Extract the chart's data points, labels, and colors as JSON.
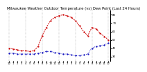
{
  "title": "Milwaukee Weather Outdoor Temperature (vs) Dew Point (Last 24 Hours)",
  "background_color": "#ffffff",
  "grid_color": "#888888",
  "temp_color": "#cc0000",
  "dew_color": "#0000bb",
  "ylim": [
    25,
    85
  ],
  "ytick_vals": [
    30,
    40,
    50,
    60,
    70,
    80
  ],
  "ytick_labels": [
    "3d",
    "4d",
    "5d",
    "6d",
    "7d",
    "8d"
  ],
  "temp_values": [
    40,
    39,
    38,
    37,
    37,
    36,
    37,
    42,
    55,
    65,
    73,
    77,
    79,
    80,
    79,
    77,
    73,
    67,
    60,
    55,
    65,
    63,
    58,
    54,
    50
  ],
  "dew_values": [
    34,
    34,
    33,
    33,
    33,
    33,
    33,
    34,
    35,
    36,
    36,
    35,
    34,
    33,
    33,
    32,
    31,
    31,
    32,
    33,
    40,
    42,
    43,
    44,
    46
  ],
  "n_points": 25,
  "xtick_labels": [
    "12",
    "1",
    "2",
    "3",
    "4",
    "5",
    "6",
    "7",
    "8",
    "9",
    "10",
    "11",
    "12",
    "1",
    "2",
    "3",
    "4",
    "5",
    "6",
    "7",
    "8",
    "9",
    "10",
    "11",
    "12"
  ],
  "title_fontsize": 3.8,
  "tick_fontsize": 2.8,
  "line_width": 0.65,
  "marker_size": 1.2
}
